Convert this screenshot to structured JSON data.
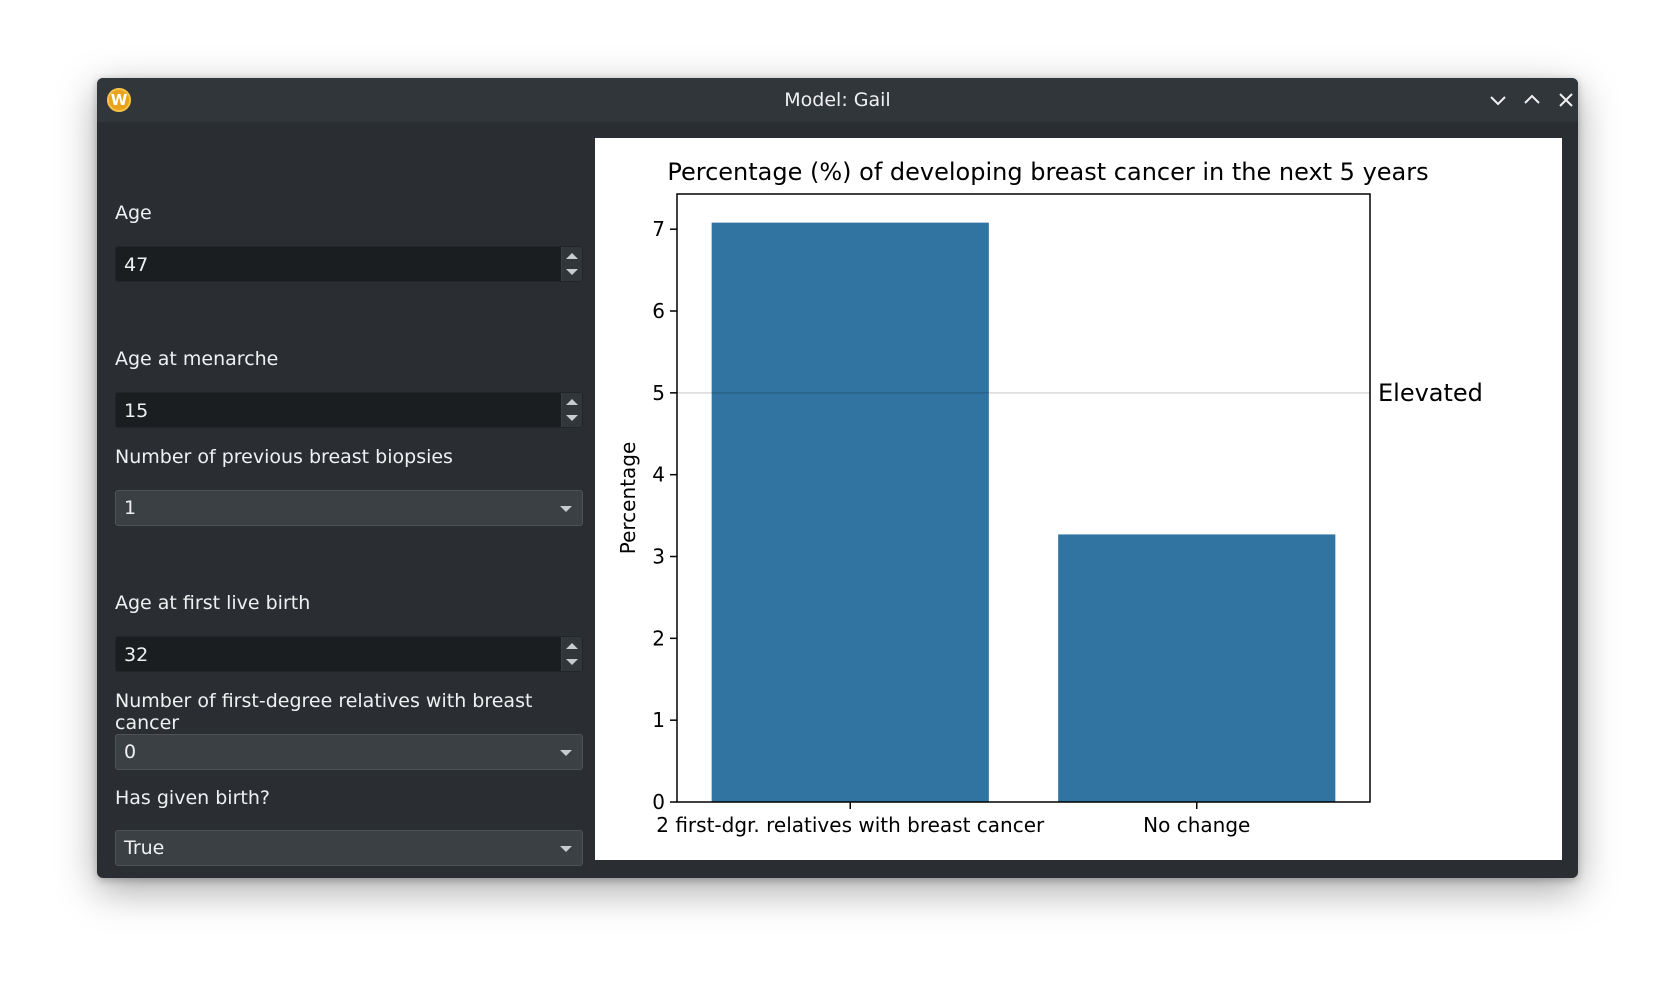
{
  "window": {
    "title": "Model: Gail",
    "app_icon_letter": "W",
    "controls": [
      "minimize-icon",
      "maximize-icon",
      "close-icon"
    ]
  },
  "form": {
    "age": {
      "label": "Age",
      "value": "47"
    },
    "age_menarche": {
      "label": "Age at menarche",
      "value": "15"
    },
    "biopsies": {
      "label": "Number of previous breast biopsies",
      "value": "1"
    },
    "first_birth": {
      "label": "Age at first live birth",
      "value": "32"
    },
    "relatives": {
      "label": "Number of first-degree relatives with breast cancer",
      "value": "0"
    },
    "given_birth": {
      "label": "Has given birth?",
      "value": "True"
    }
  },
  "chart_data": {
    "type": "bar",
    "title": "Percentage (%) of developing breast cancer in the next 5 years",
    "xlabel": "",
    "ylabel": "Percentage",
    "categories": [
      "2 first-dgr. relatives with breast cancer",
      "No change"
    ],
    "values": [
      7.08,
      3.27
    ],
    "ylim": [
      0,
      7.43
    ],
    "yticks": [
      0,
      1,
      2,
      3,
      4,
      5,
      6,
      7
    ],
    "reference_line": {
      "y": 5,
      "label": "Elevated"
    },
    "bar_color": "#3274a1",
    "grid": false
  }
}
